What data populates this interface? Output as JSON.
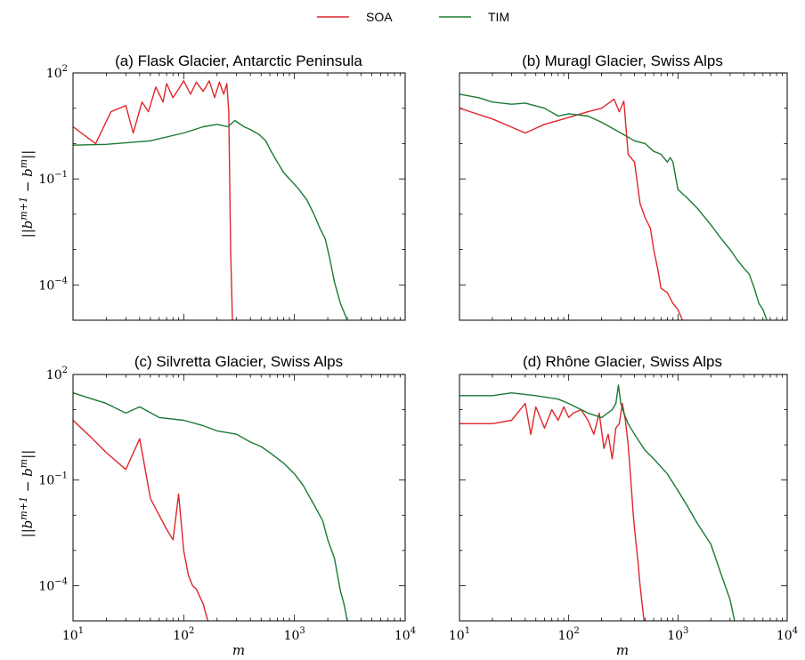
{
  "legend": {
    "items": [
      {
        "label": "SOA",
        "color": "#e0262b"
      },
      {
        "label": "TIM",
        "color": "#1a7a33"
      }
    ]
  },
  "axes": {
    "xlabel": "m",
    "ylabel": "||b^{m+1} − b^{m}||",
    "xscale": "log",
    "yscale": "log",
    "xlim": [
      10,
      10000
    ],
    "ylim": [
      1e-05,
      100
    ],
    "xticks": [
      {
        "base": "10",
        "exp": "1"
      },
      {
        "base": "10",
        "exp": "2"
      },
      {
        "base": "10",
        "exp": "3"
      },
      {
        "base": "10",
        "exp": "4"
      }
    ],
    "yticks": [
      {
        "base": "10",
        "exp": "2"
      },
      {
        "base": "10",
        "exp": "−1"
      },
      {
        "base": "10",
        "exp": "−4"
      }
    ]
  },
  "chart_data": [
    {
      "type": "line",
      "title": "(a) Flask Glacier, Antarctic Peninsula",
      "series": [
        {
          "name": "SOA",
          "x": [
            10,
            16,
            22,
            30,
            35,
            42,
            48,
            56,
            65,
            70,
            80,
            90,
            100,
            115,
            130,
            150,
            170,
            190,
            210,
            230,
            245,
            255,
            265,
            275
          ],
          "y": [
            3.0,
            1.0,
            8.0,
            12.0,
            2.0,
            15.0,
            8.0,
            40.0,
            15.0,
            50.0,
            20.0,
            35.0,
            60.0,
            25.0,
            55.0,
            30.0,
            60.0,
            20.0,
            55.0,
            25.0,
            50.0,
            8.0,
            0.001,
            1e-05
          ]
        },
        {
          "name": "TIM",
          "x": [
            10,
            20,
            50,
            100,
            150,
            200,
            250,
            290,
            350,
            400,
            480,
            550,
            600,
            700,
            800,
            900,
            1000,
            1100,
            1300,
            1500,
            1700,
            1900,
            2100,
            2300,
            2600,
            3000
          ],
          "y": [
            0.9,
            0.95,
            1.2,
            2.0,
            3.0,
            3.5,
            3.0,
            4.5,
            3.0,
            2.5,
            1.8,
            1.2,
            0.7,
            0.3,
            0.15,
            0.1,
            0.07,
            0.05,
            0.025,
            0.01,
            0.004,
            0.002,
            0.0005,
            0.00012,
            3e-05,
            1e-05
          ]
        }
      ]
    },
    {
      "type": "line",
      "title": "(b) Muragl Glacier, Swiss Alps",
      "series": [
        {
          "name": "SOA",
          "x": [
            10,
            20,
            40,
            60,
            90,
            150,
            200,
            260,
            290,
            320,
            350,
            400,
            450,
            500,
            560,
            600,
            650,
            700,
            800,
            900,
            1000,
            1100
          ],
          "y": [
            10.0,
            5.0,
            2.0,
            3.5,
            5.0,
            8.0,
            10.0,
            18.0,
            8.0,
            16.0,
            0.5,
            0.3,
            0.02,
            0.008,
            0.004,
            0.001,
            0.0003,
            8e-05,
            6e-05,
            3e-05,
            2e-05,
            1e-05
          ]
        },
        {
          "name": "TIM",
          "x": [
            10,
            15,
            20,
            30,
            40,
            60,
            80,
            100,
            150,
            200,
            300,
            400,
            500,
            600,
            700,
            800,
            850,
            900,
            1000,
            1200,
            1500,
            2000,
            2500,
            3000,
            3500,
            4000,
            4500,
            5000,
            5500,
            6000,
            6500
          ],
          "y": [
            25.0,
            20.0,
            15.0,
            13.0,
            14.0,
            10.0,
            6.0,
            7.0,
            6.0,
            4.0,
            2.0,
            1.2,
            1.0,
            0.6,
            0.5,
            0.3,
            0.4,
            0.3,
            0.05,
            0.03,
            0.015,
            0.005,
            0.002,
            0.001,
            0.0005,
            0.0003,
            0.0002,
            8e-05,
            3e-05,
            2e-05,
            1e-05
          ]
        }
      ]
    },
    {
      "type": "line",
      "title": "(c) Silvretta Glacier, Swiss Alps",
      "series": [
        {
          "name": "SOA",
          "x": [
            10,
            15,
            20,
            30,
            40,
            50,
            60,
            70,
            80,
            90,
            100,
            110,
            120,
            130,
            150,
            165
          ],
          "y": [
            5.0,
            1.5,
            0.6,
            0.2,
            1.5,
            0.03,
            0.01,
            0.004,
            0.002,
            0.04,
            0.001,
            0.0002,
            0.0001,
            8e-05,
            3e-05,
            1e-05
          ]
        },
        {
          "name": "TIM",
          "x": [
            10,
            15,
            20,
            30,
            40,
            60,
            100,
            150,
            200,
            300,
            400,
            500,
            600,
            800,
            1000,
            1200,
            1500,
            1800,
            2000,
            2300,
            2600,
            2800,
            3000
          ],
          "y": [
            30.0,
            20.0,
            15.0,
            8.0,
            12.0,
            6.0,
            5.0,
            3.5,
            2.5,
            2.0,
            1.2,
            0.9,
            0.6,
            0.3,
            0.15,
            0.07,
            0.02,
            0.007,
            0.002,
            0.0006,
            7e-05,
            3e-05,
            1e-05
          ]
        }
      ]
    },
    {
      "type": "line",
      "title": "(d) Rhône Glacier, Swiss Alps",
      "series": [
        {
          "name": "SOA",
          "x": [
            10,
            20,
            30,
            40,
            45,
            50,
            60,
            70,
            80,
            90,
            100,
            110,
            130,
            150,
            170,
            190,
            210,
            230,
            250,
            270,
            290,
            310,
            330,
            350,
            370,
            390,
            410,
            430,
            450,
            470,
            490
          ],
          "y": [
            4.0,
            4.0,
            5.0,
            15.0,
            2.0,
            12.0,
            3.0,
            10.0,
            5.0,
            12.0,
            6.0,
            8.0,
            10.0,
            5.0,
            2.0,
            8.0,
            0.8,
            2.0,
            0.4,
            3.0,
            4.0,
            15.0,
            5.0,
            1.0,
            0.1,
            0.01,
            0.002,
            0.0005,
            0.0001,
            3e-05,
            1e-05
          ]
        },
        {
          "name": "TIM",
          "x": [
            10,
            20,
            30,
            50,
            80,
            100,
            150,
            200,
            250,
            270,
            285,
            300,
            320,
            350,
            400,
            500,
            600,
            800,
            1000,
            1200,
            1500,
            2000,
            2500,
            3000,
            3300
          ],
          "y": [
            25.0,
            25.0,
            30.0,
            25.0,
            20.0,
            15.0,
            8.0,
            6.0,
            10.0,
            15.0,
            50.0,
            15.0,
            8.0,
            4.0,
            2.0,
            0.7,
            0.4,
            0.15,
            0.05,
            0.02,
            0.006,
            0.0015,
            0.0002,
            4e-05,
            1e-05
          ]
        }
      ]
    }
  ]
}
